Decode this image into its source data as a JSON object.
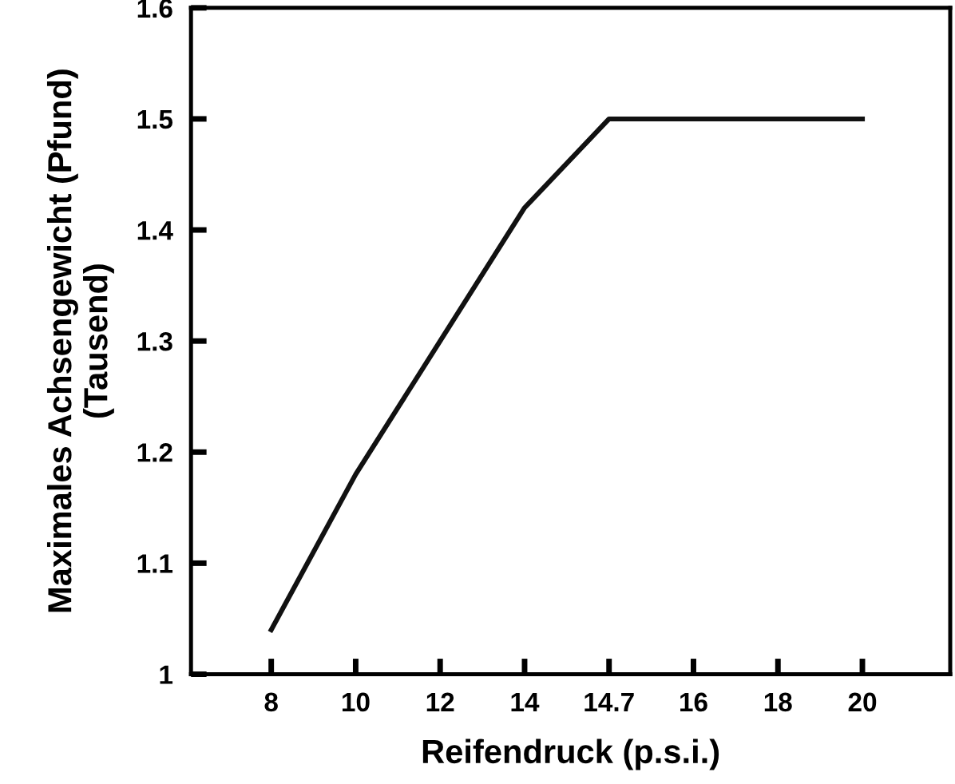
{
  "chart_data": {
    "type": "line",
    "xlabel": "Reifendruck (p.s.i.)",
    "ylabel": "Maximales Achsengewicht (Pfund)\n(Tausend)",
    "categories": [
      "8",
      "10",
      "12",
      "14",
      "14.7",
      "16",
      "18",
      "20"
    ],
    "series": [
      {
        "color": "#111111",
        "values": [
          1.04,
          1.18,
          1.3,
          1.42,
          1.5,
          1.5,
          1.5,
          1.5
        ]
      }
    ],
    "ylim": [
      1,
      1.6
    ],
    "yticks": [
      1,
      1.1,
      1.2,
      1.3,
      1.4,
      1.5,
      1.6
    ],
    "grid": false,
    "legend": false,
    "marker": "none",
    "line_style": "solid"
  }
}
